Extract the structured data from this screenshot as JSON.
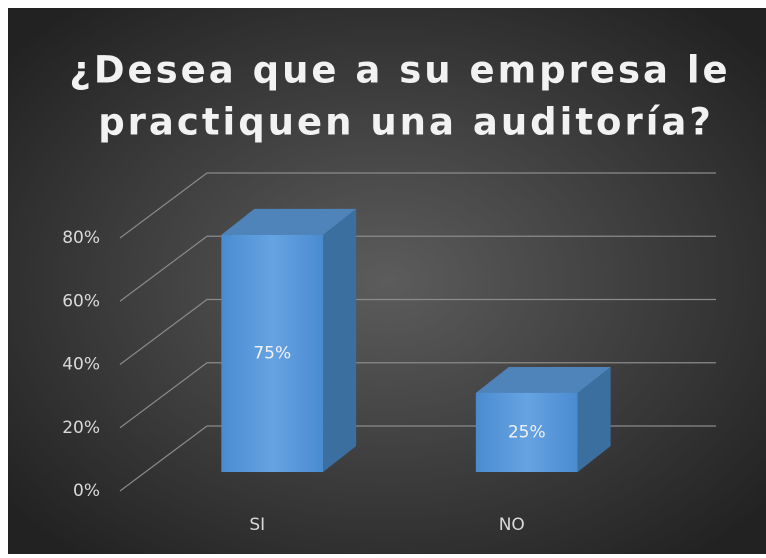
{
  "chart_data": {
    "type": "bar3d",
    "title": [
      "¿Desea que a su empresa le",
      "practiquen una auditoría?"
    ],
    "categories": [
      "SI",
      "NO"
    ],
    "values": [
      75,
      25
    ],
    "value_labels": [
      "75%",
      "25%"
    ],
    "color": "#5b9bd5",
    "ylim": [
      0,
      80
    ],
    "yticks": [
      {
        "value": 0,
        "label": "0%"
      },
      {
        "value": 20,
        "label": "20%"
      },
      {
        "value": 40,
        "label": "40%"
      },
      {
        "value": 60,
        "label": "60%"
      },
      {
        "value": 80,
        "label": "80%"
      }
    ],
    "grid": true
  }
}
